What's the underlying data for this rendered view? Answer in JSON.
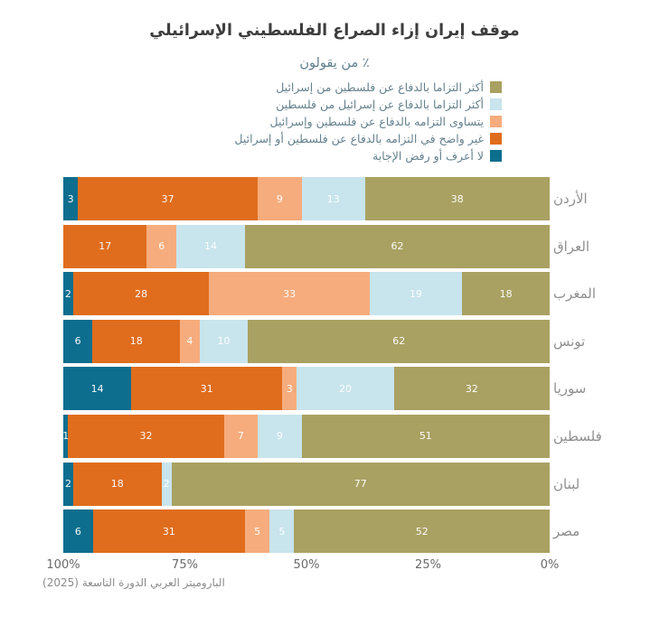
{
  "title": "موقف إيران إزاء الصراع الفلسطيني الإسرائيلي",
  "subtitle": "٪ من يقولون",
  "source": "الباروميتر العربي الدورة التاسعة (2025)",
  "colors": {
    "pal": "#a9a162",
    "isr": "#c8e4ed",
    "equal": "#f6ac7d",
    "unclear": "#e06d1d",
    "dk": "#0d6e8e"
  },
  "legend": [
    {
      "key": "pal",
      "label": "أكثر التزاما بالدفاع عن فلسطين من إسرائيل"
    },
    {
      "key": "isr",
      "label": "أكثر التزاما بالدفاع عن إسرائيل من فلسطين"
    },
    {
      "key": "equal",
      "label": "يتساوى التزامه بالدفاع عن فلسطين وإسرائيل"
    },
    {
      "key": "unclear",
      "label": "غير واضح في التزامه بالدفاع عن فلسطين أو إسرائيل"
    },
    {
      "key": "dk",
      "label": "لا أعرف أو رفض الإجابة"
    }
  ],
  "axis": {
    "ticks": [
      "100%",
      "75%",
      "50%",
      "25%",
      "0%"
    ]
  },
  "chart_data": {
    "type": "bar",
    "variant": "horizontal-stacked",
    "direction": "rtl",
    "value_axis_range": [
      0,
      100
    ],
    "tick_labels": [
      "100%",
      "75%",
      "50%",
      "25%",
      "0%"
    ],
    "title": "موقف إيران إزاء الصراع الفلسطيني الإسرائيلي",
    "subtitle": "٪ من يقولون",
    "categories": [
      "الأردن",
      "العراق",
      "المغرب",
      "تونس",
      "سوريا",
      "فلسطين",
      "لبنان",
      "مصر"
    ],
    "series": [
      {
        "key": "pal",
        "name": "أكثر التزاما بالدفاع عن فلسطين من إسرائيل",
        "color": "#a9a162",
        "values": [
          38,
          62,
          18,
          62,
          32,
          51,
          77,
          52
        ]
      },
      {
        "key": "isr",
        "name": "أكثر التزاما بالدفاع عن إسرائيل من فلسطين",
        "color": "#c8e4ed",
        "values": [
          13,
          14,
          19,
          10,
          20,
          9,
          2,
          5
        ]
      },
      {
        "key": "equal",
        "name": "يتساوى التزامه بالدفاع عن فلسطين وإسرائيل",
        "color": "#f6ac7d",
        "values": [
          9,
          6,
          33,
          4,
          3,
          7,
          0,
          5
        ]
      },
      {
        "key": "unclear",
        "name": "غير واضح في التزامه بالدفاع عن فلسطين أو إسرائيل",
        "color": "#e06d1d",
        "values": [
          37,
          17,
          28,
          18,
          31,
          32,
          18,
          31
        ]
      },
      {
        "key": "dk",
        "name": "لا أعرف أو رفض الإجابة",
        "color": "#0d6e8e",
        "values": [
          3,
          0,
          2,
          6,
          14,
          1,
          2,
          6
        ]
      }
    ]
  }
}
